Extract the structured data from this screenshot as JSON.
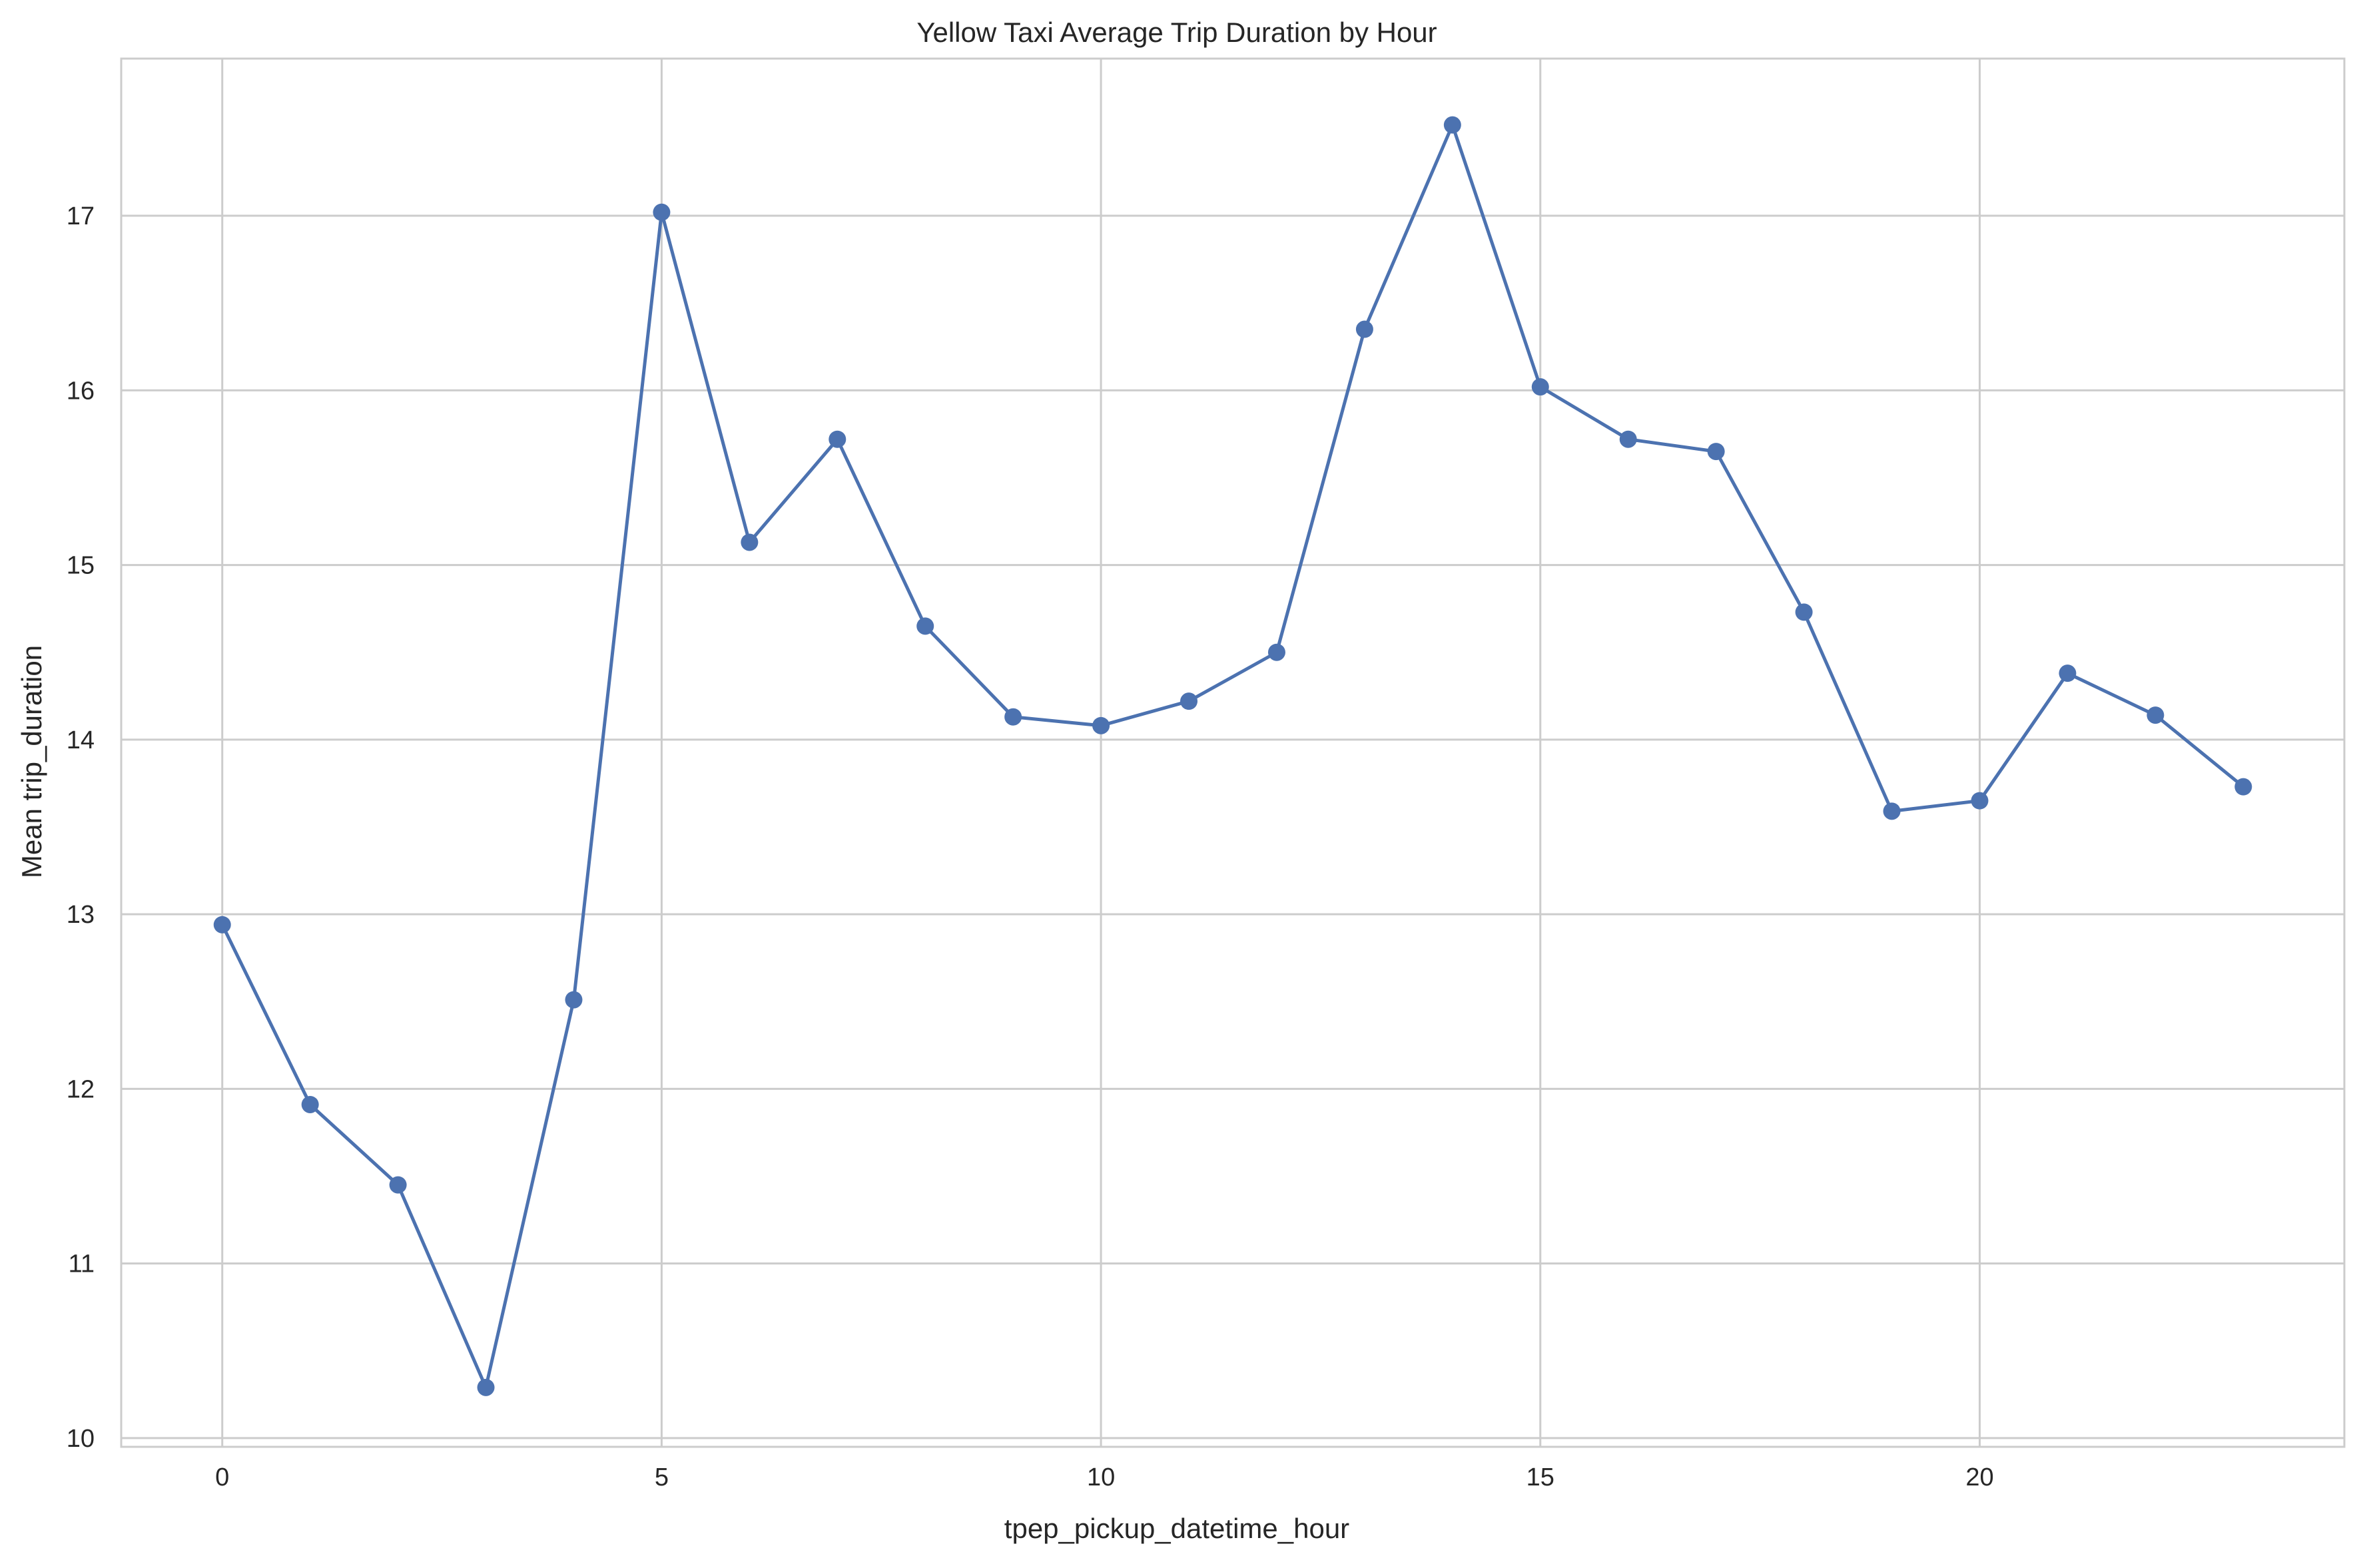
{
  "chart_data": {
    "type": "line",
    "title": "Yellow Taxi Average Trip Duration by Hour",
    "xlabel": "tpep_pickup_datetime_hour",
    "ylabel": "Mean trip_duration",
    "xlim": [
      -1.15,
      24.15
    ],
    "ylim": [
      9.95,
      17.9
    ],
    "xticks": [
      0,
      5,
      10,
      15,
      20
    ],
    "yticks": [
      10,
      11,
      12,
      13,
      14,
      15,
      16,
      17
    ],
    "grid": true,
    "legend": "none",
    "series": [
      {
        "color": "#4C72B0",
        "marker": "circle",
        "x": [
          0,
          1,
          2,
          3,
          4,
          5,
          6,
          7,
          8,
          9,
          10,
          11,
          12,
          13,
          14,
          15,
          16,
          17,
          18,
          19,
          20,
          21,
          22,
          23
        ],
        "y": [
          12.94,
          11.91,
          11.45,
          10.29,
          12.51,
          17.02,
          15.13,
          15.72,
          14.65,
          14.13,
          14.08,
          14.22,
          14.5,
          16.35,
          17.52,
          16.02,
          15.72,
          15.65,
          14.73,
          13.59,
          13.65,
          14.38,
          14.14,
          13.73
        ]
      }
    ],
    "style": {
      "background": "#ffffff",
      "grid_color": "#cccccc",
      "spine_color": "#cccccc",
      "text_color": "#262626"
    }
  }
}
